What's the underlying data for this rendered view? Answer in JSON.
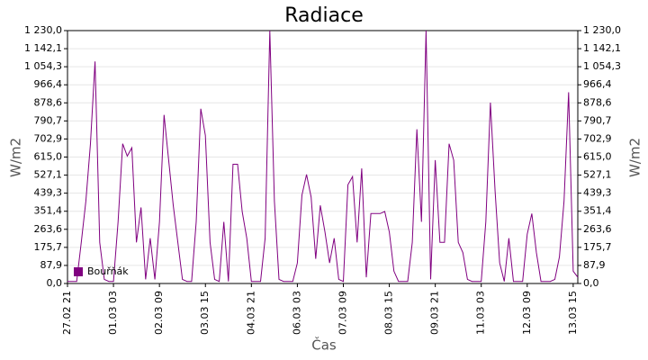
{
  "chart_data": {
    "type": "line",
    "title": "Radiace",
    "xlabel": "Čas",
    "ylabel": "W/m2",
    "y2label": "W/m2",
    "x": [
      "27.02 21",
      "28.02 00",
      "28.02 03",
      "28.02 06",
      "28.02 09",
      "28.02 12",
      "28.02 15",
      "28.02 18",
      "28.02 21",
      "01.03 00",
      "01.03 03",
      "01.03 06",
      "01.03 09",
      "01.03 12",
      "01.03 15",
      "01.03 18",
      "01.03 21",
      "02.03 00",
      "02.03 03",
      "02.03 06",
      "02.03 09",
      "02.03 12",
      "02.03 15",
      "02.03 18",
      "02.03 21",
      "03.03 00",
      "03.03 03",
      "03.03 06",
      "03.03 09",
      "03.03 12",
      "03.03 15",
      "03.03 18",
      "03.03 21",
      "04.03 00",
      "04.03 03",
      "04.03 06",
      "04.03 09",
      "04.03 12",
      "04.03 15",
      "04.03 18",
      "04.03 21",
      "05.03 00",
      "05.03 03",
      "05.03 06",
      "05.03 09",
      "05.03 12",
      "05.03 15",
      "05.03 18",
      "05.03 21",
      "06.03 00",
      "06.03 03",
      "06.03 06",
      "06.03 09",
      "06.03 12",
      "06.03 15",
      "06.03 18",
      "06.03 21",
      "07.03 00",
      "07.03 03",
      "07.03 06",
      "07.03 09",
      "07.03 12",
      "07.03 15",
      "07.03 18",
      "07.03 21",
      "08.03 00",
      "08.03 03",
      "08.03 06",
      "08.03 09",
      "08.03 12",
      "08.03 15",
      "08.03 18",
      "08.03 21",
      "09.03 00",
      "09.03 03",
      "09.03 06",
      "09.03 09",
      "09.03 12",
      "09.03 15",
      "09.03 18",
      "09.03 21",
      "10.03 00",
      "10.03 03",
      "10.03 06",
      "10.03 09",
      "10.03 12",
      "10.03 15",
      "10.03 18",
      "10.03 21",
      "11.03 00",
      "11.03 03",
      "11.03 06",
      "11.03 09",
      "11.03 12",
      "11.03 15",
      "11.03 18",
      "11.03 21",
      "12.03 00",
      "12.03 03",
      "12.03 06",
      "12.03 09",
      "12.03 12",
      "12.03 15",
      "12.03 18",
      "12.03 21",
      "13.03 00",
      "13.03 03",
      "13.03 06",
      "13.03 09",
      "13.03 12",
      "13.03 15",
      "13.03 18"
    ],
    "series": [
      {
        "name": "Bouřňák",
        "color": "#800080",
        "values": [
          10,
          10,
          10,
          200,
          400,
          680,
          1080,
          200,
          20,
          10,
          10,
          300,
          680,
          620,
          660,
          200,
          370,
          20,
          220,
          20,
          300,
          820,
          600,
          380,
          200,
          20,
          10,
          10,
          300,
          850,
          720,
          200,
          20,
          10,
          300,
          10,
          580,
          580,
          350,
          220,
          10,
          10,
          10,
          220,
          1230,
          400,
          20,
          10,
          10,
          10,
          100,
          430,
          530,
          420,
          120,
          380,
          250,
          100,
          220,
          20,
          10,
          480,
          520,
          200,
          560,
          30,
          340,
          340,
          340,
          350,
          250,
          60,
          10,
          10,
          10,
          200,
          750,
          300,
          1230,
          20,
          600,
          200,
          200,
          680,
          600,
          200,
          150,
          20,
          10,
          10,
          10,
          300,
          880,
          450,
          100,
          10,
          220,
          10,
          10,
          10,
          240,
          340,
          150,
          10,
          10,
          10,
          20,
          130,
          400,
          930,
          60,
          30
        ]
      }
    ],
    "xlim": [
      "27.02 21",
      "13.03 18"
    ],
    "xticks": [
      "27.02 21",
      "01.03 03",
      "02.03 09",
      "03.03 15",
      "04.03 21",
      "06.03 03",
      "07.03 09",
      "08.03 15",
      "09.03 21",
      "11.03 03",
      "12.03 09",
      "13.03 15"
    ],
    "ylim": [
      0,
      1230
    ],
    "yticks": [
      {
        "value": 0,
        "label": "0,0"
      },
      {
        "value": 87.9,
        "label": "87,9"
      },
      {
        "value": 175.7,
        "label": "175,7"
      },
      {
        "value": 263.6,
        "label": "263,6"
      },
      {
        "value": 351.4,
        "label": "351,4"
      },
      {
        "value": 439.3,
        "label": "439,3"
      },
      {
        "value": 527.1,
        "label": "527,1"
      },
      {
        "value": 615,
        "label": "615,0"
      },
      {
        "value": 702.9,
        "label": "702,9"
      },
      {
        "value": 790.7,
        "label": "790,7"
      },
      {
        "value": 878.6,
        "label": "878,6"
      },
      {
        "value": 966.4,
        "label": "966,4"
      },
      {
        "value": 1054.3,
        "label": "1 054,3"
      },
      {
        "value": 1142.1,
        "label": "1 142,1"
      },
      {
        "value": 1230,
        "label": "1 230,0"
      }
    ],
    "y2lim": [
      0,
      1230
    ],
    "y2ticks": [
      {
        "value": 0,
        "label": "0,0"
      },
      {
        "value": 87.9,
        "label": "87,9"
      },
      {
        "value": 175.7,
        "label": "175,7"
      },
      {
        "value": 263.6,
        "label": "263,6"
      },
      {
        "value": 351.4,
        "label": "351,4"
      },
      {
        "value": 439.3,
        "label": "439,3"
      },
      {
        "value": 527.1,
        "label": "527,1"
      },
      {
        "value": 615,
        "label": "615,0"
      },
      {
        "value": 702.9,
        "label": "702,9"
      },
      {
        "value": 790.7,
        "label": "790,7"
      },
      {
        "value": 878.6,
        "label": "878,6"
      },
      {
        "value": 966.4,
        "label": "966,4"
      },
      {
        "value": 1054.3,
        "label": "1 054,3"
      },
      {
        "value": 1142.1,
        "label": "1 142,1"
      },
      {
        "value": 1230,
        "label": "1 230,0"
      }
    ],
    "grid": true,
    "legend": "lower left"
  }
}
